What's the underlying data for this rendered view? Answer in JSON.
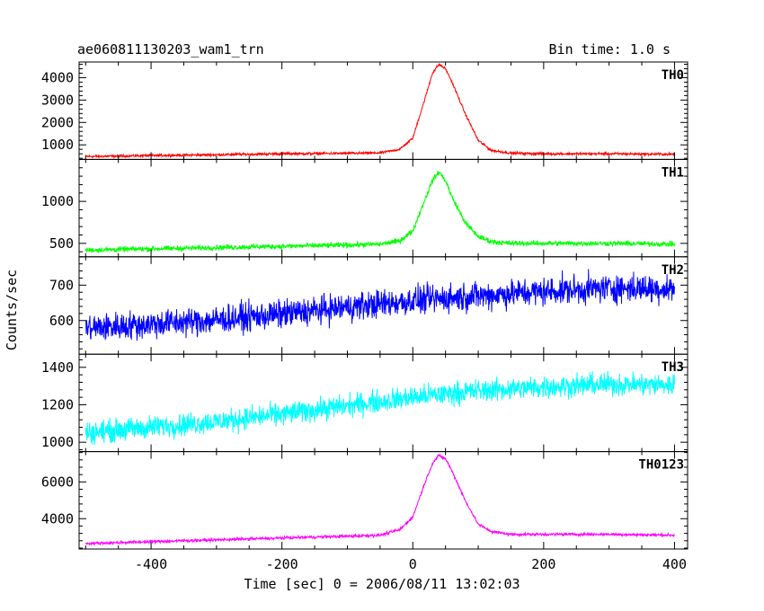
{
  "header": {
    "title": "ae060811130203_wam1_trn",
    "bin_time": "Bin time: 1.0 s"
  },
  "xlabel": "Time [sec] 0 = 2006/08/11 13:02:03",
  "ylabel": "Counts/sec",
  "chart_data": [
    {
      "type": "line",
      "panel_label": "TH0",
      "color": "#ff0000",
      "xlim": [
        -510,
        420
      ],
      "ylim": [
        350,
        4700
      ],
      "y_ticks": [
        1000,
        2000,
        3000,
        4000
      ],
      "x": [
        -500,
        -400,
        -300,
        -200,
        -100,
        -50,
        -20,
        0,
        20,
        30,
        40,
        50,
        60,
        80,
        100,
        120,
        150,
        200,
        300,
        400
      ],
      "y": [
        480,
        520,
        560,
        600,
        620,
        640,
        800,
        1300,
        3200,
        4200,
        4600,
        4400,
        3800,
        2400,
        1200,
        750,
        630,
        600,
        600,
        580
      ],
      "noise": 40
    },
    {
      "type": "line",
      "panel_label": "TH1",
      "color": "#00ff00",
      "xlim": [
        -510,
        420
      ],
      "ylim": [
        340,
        1500
      ],
      "y_ticks": [
        500,
        1000
      ],
      "x": [
        -500,
        -400,
        -300,
        -200,
        -100,
        -50,
        -20,
        0,
        20,
        30,
        40,
        50,
        60,
        80,
        100,
        120,
        150,
        200,
        300,
        400
      ],
      "y": [
        420,
        435,
        450,
        465,
        480,
        490,
        530,
        650,
        1050,
        1250,
        1350,
        1250,
        1050,
        750,
        580,
        520,
        500,
        500,
        500,
        490
      ],
      "noise": 22
    },
    {
      "type": "line",
      "panel_label": "TH2",
      "color": "#0000ff",
      "xlim": [
        -510,
        420
      ],
      "ylim": [
        505,
        780
      ],
      "y_ticks": [
        600,
        700
      ],
      "x": [
        -500,
        -400,
        -300,
        -200,
        -100,
        0,
        100,
        200,
        300,
        400
      ],
      "y": [
        578,
        590,
        602,
        618,
        638,
        656,
        670,
        682,
        692,
        690
      ],
      "noise": 28
    },
    {
      "type": "line",
      "panel_label": "TH3",
      "color": "#00ffff",
      "xlim": [
        -510,
        420
      ],
      "ylim": [
        950,
        1470
      ],
      "y_ticks": [
        1000,
        1200,
        1400
      ],
      "x": [
        -500,
        -400,
        -300,
        -200,
        -100,
        0,
        100,
        200,
        300,
        400
      ],
      "y": [
        1050,
        1080,
        1110,
        1150,
        1195,
        1240,
        1275,
        1295,
        1310,
        1305
      ],
      "noise": 42
    },
    {
      "type": "line",
      "panel_label": "TH0123",
      "color": "#ff00ff",
      "xlim": [
        -510,
        420
      ],
      "ylim": [
        2350,
        7650
      ],
      "y_ticks": [
        4000,
        6000
      ],
      "x_ticks": [
        -400,
        -200,
        0,
        200,
        400
      ],
      "x": [
        -500,
        -400,
        -300,
        -200,
        -100,
        -50,
        -20,
        0,
        20,
        30,
        40,
        50,
        60,
        80,
        100,
        120,
        150,
        200,
        300,
        400
      ],
      "y": [
        2650,
        2750,
        2850,
        2950,
        3050,
        3100,
        3400,
        4100,
        6100,
        7000,
        7450,
        7250,
        6600,
        5000,
        3700,
        3300,
        3150,
        3150,
        3150,
        3100
      ],
      "noise": 55
    }
  ]
}
